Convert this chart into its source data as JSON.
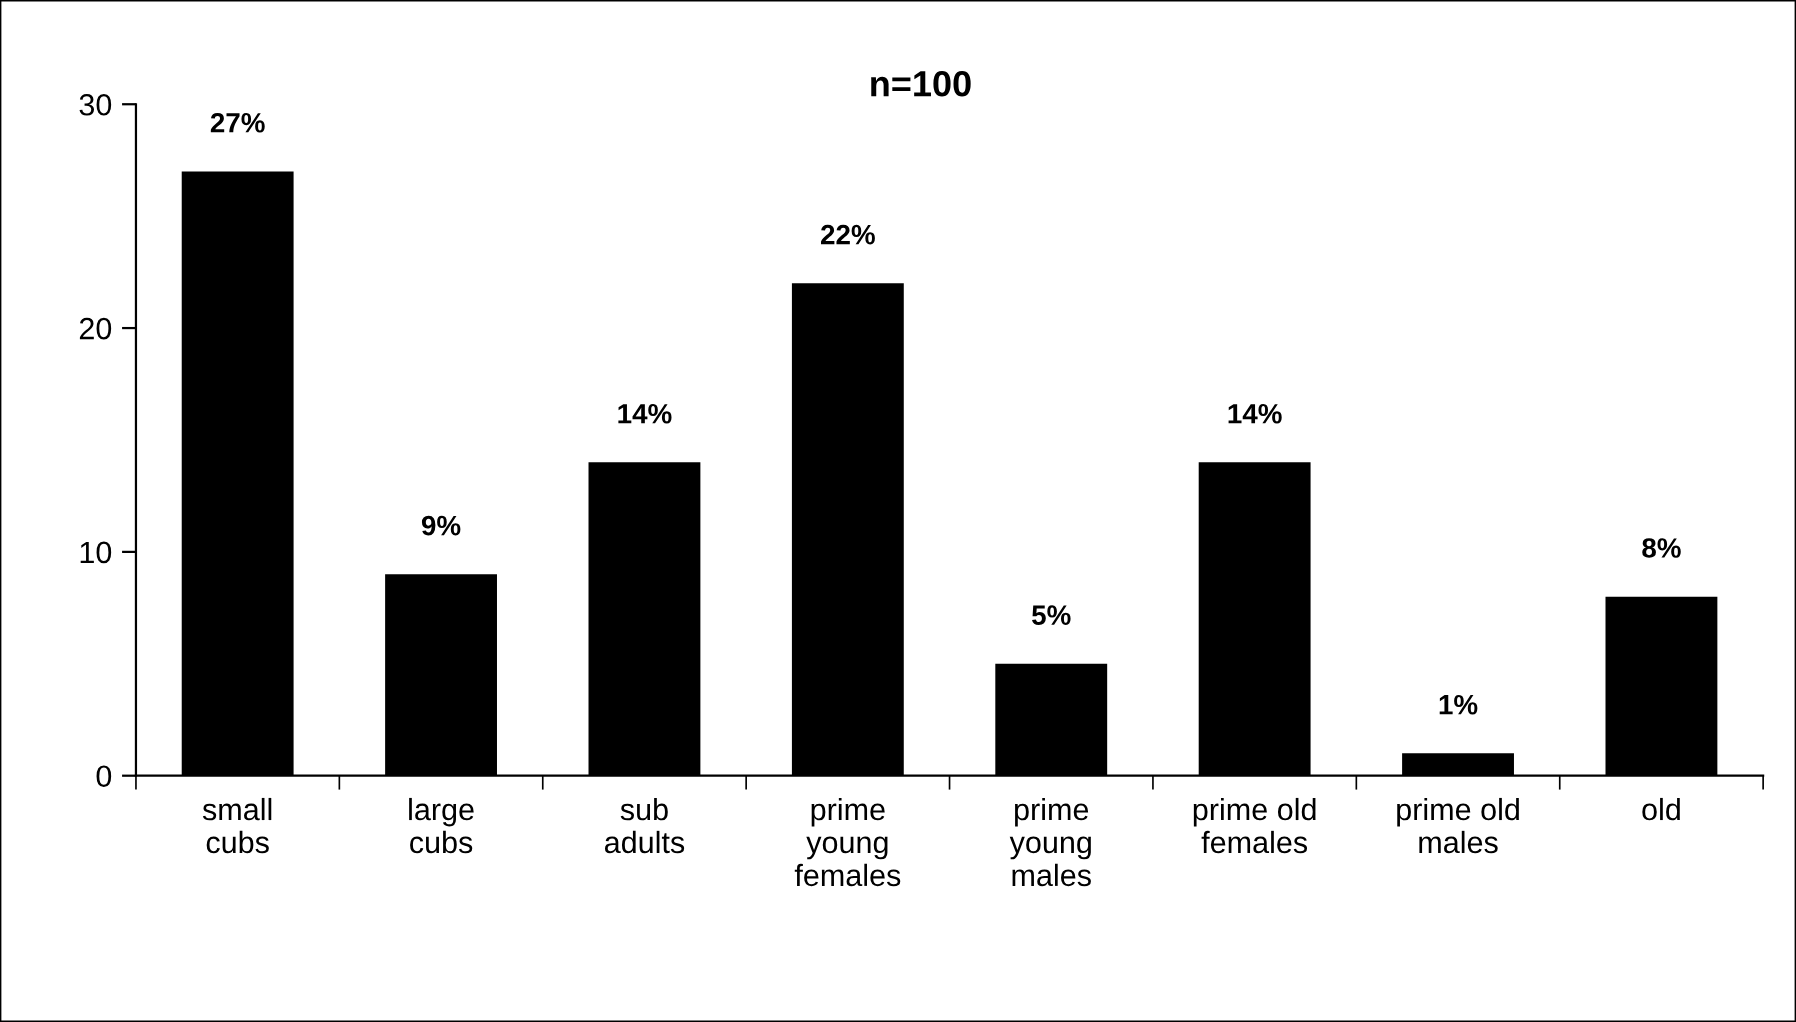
{
  "chart_data": {
    "type": "bar",
    "title": "n=100",
    "categories": [
      "small\ncubs",
      "large\ncubs",
      "sub\nadults",
      "prime\nyoung\nfemales",
      "prime\nyoung\nmales",
      "prime old\nfemales",
      "prime old\nmales",
      "old"
    ],
    "values": [
      27,
      9,
      14,
      22,
      5,
      14,
      1,
      8
    ],
    "value_labels": [
      "27%",
      "9%",
      "14%",
      "22%",
      "5%",
      "14%",
      "1%",
      "8%"
    ],
    "color": "#000000",
    "ylim": [
      0,
      30
    ],
    "yticks": [
      0,
      10,
      20,
      30
    ],
    "grid": false,
    "legend": false
  }
}
